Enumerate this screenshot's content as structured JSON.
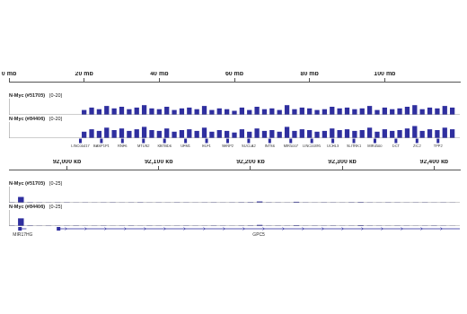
{
  "chart_data": [
    {
      "type": "bar",
      "color": "#2f2f9f",
      "xlim": [
        0,
        120
      ],
      "xticks": [
        {
          "value": 0,
          "label": "0 mb"
        },
        {
          "value": 20,
          "label": "20 mb"
        },
        {
          "value": 40,
          "label": "40 mb"
        },
        {
          "value": 60,
          "label": "60 mb"
        },
        {
          "value": 80,
          "label": "80 mb"
        },
        {
          "value": 100,
          "label": "100 mb"
        }
      ],
      "tracks": [
        {
          "name": "N-Myc (#51705)",
          "ylim": [
            0,
            20
          ],
          "yticks": [
            {
              "value": 20,
              "label": "[0-20]"
            }
          ],
          "x": [
            20,
            22,
            24,
            26,
            28,
            30,
            32,
            34,
            36,
            38,
            40,
            42,
            44,
            46,
            48,
            50,
            52,
            54,
            56,
            58,
            60,
            62,
            64,
            66,
            68,
            70,
            72,
            74,
            76,
            78,
            80,
            82,
            84,
            86,
            88,
            90,
            92,
            94,
            96,
            98,
            100,
            102,
            104,
            106,
            108,
            110,
            112,
            114,
            116,
            118
          ],
          "values": [
            6,
            9,
            7,
            11,
            8,
            10,
            7,
            9,
            12,
            8,
            7,
            10,
            6,
            8,
            9,
            7,
            11,
            6,
            8,
            7,
            5,
            9,
            6,
            10,
            7,
            8,
            6,
            12,
            7,
            9,
            8,
            6,
            7,
            10,
            8,
            9,
            7,
            8,
            11,
            6,
            9,
            7,
            8,
            10,
            12,
            7,
            9,
            8,
            11,
            9
          ]
        },
        {
          "name": "N-Myc (#84406)",
          "ylim": [
            0,
            20
          ],
          "yticks": [
            {
              "value": 20,
              "label": "[0-20]"
            }
          ],
          "x": [
            20,
            22,
            24,
            26,
            28,
            30,
            32,
            34,
            36,
            38,
            40,
            42,
            44,
            46,
            48,
            50,
            52,
            54,
            56,
            58,
            60,
            62,
            64,
            66,
            68,
            70,
            72,
            74,
            76,
            78,
            80,
            82,
            84,
            86,
            88,
            90,
            92,
            94,
            96,
            98,
            100,
            102,
            104,
            106,
            108,
            110,
            112,
            114,
            116,
            118
          ],
          "values": [
            8,
            11,
            9,
            13,
            10,
            12,
            9,
            11,
            14,
            10,
            9,
            12,
            8,
            10,
            11,
            9,
            13,
            8,
            10,
            9,
            7,
            11,
            8,
            12,
            9,
            10,
            8,
            14,
            9,
            11,
            10,
            8,
            9,
            12,
            10,
            11,
            9,
            10,
            13,
            8,
            11,
            9,
            10,
            12,
            15,
            9,
            11,
            10,
            13,
            11
          ]
        }
      ],
      "genes": [
        {
          "name": "LINC00417",
          "x": 19
        },
        {
          "name": "BASP1P1",
          "x": 24.6
        },
        {
          "name": "RNF6",
          "x": 30.2
        },
        {
          "name": "MTUS2",
          "x": 35.8
        },
        {
          "name": "KBTBD6",
          "x": 41.4
        },
        {
          "name": "UFM1",
          "x": 47
        },
        {
          "name": "ELF1",
          "x": 52.6
        },
        {
          "name": "SERP2",
          "x": 58.2
        },
        {
          "name": "SUCLA2",
          "x": 63.8
        },
        {
          "name": "INTS6",
          "x": 69.4
        },
        {
          "name": "MIR5007",
          "x": 75
        },
        {
          "name": "LINC00395",
          "x": 80.6
        },
        {
          "name": "UCHL3",
          "x": 86.2
        },
        {
          "name": "SLITRK1",
          "x": 91.8
        },
        {
          "name": "MIR4500",
          "x": 97.4
        },
        {
          "name": "DCT",
          "x": 103
        },
        {
          "name": "ZIC2",
          "x": 108.6
        },
        {
          "name": "TPP2",
          "x": 114.2
        }
      ]
    },
    {
      "type": "bar",
      "color": "#2f2f9f",
      "xlim": [
        91937,
        92428
      ],
      "xticks": [
        {
          "value": 92000,
          "label": "92,000 kb"
        },
        {
          "value": 92100,
          "label": "92,100 kb"
        },
        {
          "value": 92200,
          "label": "92,200 kb"
        },
        {
          "value": 92300,
          "label": "92,300 kb"
        },
        {
          "value": 92400,
          "label": "92,400 kb"
        }
      ],
      "tracks": [
        {
          "name": "N-Myc (#51705)",
          "ylim": [
            0,
            25
          ],
          "yticks": [
            {
              "value": 25,
              "label": "[0-25]"
            }
          ],
          "x": [
            91940,
            91950,
            91960,
            91970,
            91980,
            91990,
            92000,
            92010,
            92020,
            92030,
            92040,
            92050,
            92060,
            92070,
            92080,
            92090,
            92100,
            92110,
            92120,
            92130,
            92140,
            92150,
            92160,
            92170,
            92180,
            92190,
            92200,
            92210,
            92220,
            92230,
            92240,
            92250,
            92260,
            92270,
            92280,
            92290,
            92300,
            92310,
            92320,
            92330,
            92340,
            92350,
            92360,
            92370,
            92380,
            92390,
            92400,
            92410,
            92420
          ],
          "values": [
            0.5,
            9,
            0.6,
            0.4,
            0.3,
            0.4,
            0.5,
            0.3,
            0.4,
            0.3,
            0.4,
            0.5,
            0.3,
            0.4,
            0.6,
            0.3,
            0.4,
            0.3,
            0.5,
            0.4,
            0.3,
            0.4,
            0.5,
            0.3,
            0.4,
            0.6,
            0.8,
            2,
            0.5,
            0.4,
            0.3,
            1.5,
            0.4,
            0.3,
            0.5,
            0.4,
            0.3,
            0.6,
            1,
            0.4,
            0.3,
            0.5,
            0.4,
            0.3,
            0.4,
            0.5,
            0.3,
            0.4,
            0.3
          ]
        },
        {
          "name": "N-Myc (#84406)",
          "ylim": [
            0,
            25
          ],
          "yticks": [
            {
              "value": 25,
              "label": "[0-25]"
            }
          ],
          "x": [
            91940,
            91950,
            91960,
            91970,
            91980,
            91990,
            92000,
            92010,
            92020,
            92030,
            92040,
            92050,
            92060,
            92070,
            92080,
            92090,
            92100,
            92110,
            92120,
            92130,
            92140,
            92150,
            92160,
            92170,
            92180,
            92190,
            92200,
            92210,
            92220,
            92230,
            92240,
            92250,
            92260,
            92270,
            92280,
            92290,
            92300,
            92310,
            92320,
            92330,
            92340,
            92350,
            92360,
            92370,
            92380,
            92390,
            92400,
            92410,
            92420
          ],
          "values": [
            0.6,
            12,
            0.8,
            0.4,
            0.5,
            0.3,
            0.4,
            0.6,
            0.3,
            0.4,
            0.5,
            0.3,
            0.4,
            0.6,
            0.3,
            0.5,
            0.4,
            0.3,
            0.4,
            0.5,
            0.4,
            0.3,
            0.6,
            0.4,
            0.3,
            0.5,
            0.7,
            1.8,
            0.4,
            0.5,
            0.4,
            1.2,
            0.3,
            0.5,
            0.4,
            0.6,
            0.3,
            0.4,
            1.3,
            0.5,
            0.4,
            0.3,
            0.5,
            0.4,
            0.3,
            0.4,
            0.6,
            0.4,
            0.3
          ]
        }
      ],
      "genes": [
        {
          "name": "MIR17HG",
          "start": 91948,
          "end": 91956
        },
        {
          "name": "GPC5",
          "start": 91990,
          "end": 92428
        }
      ]
    }
  ]
}
